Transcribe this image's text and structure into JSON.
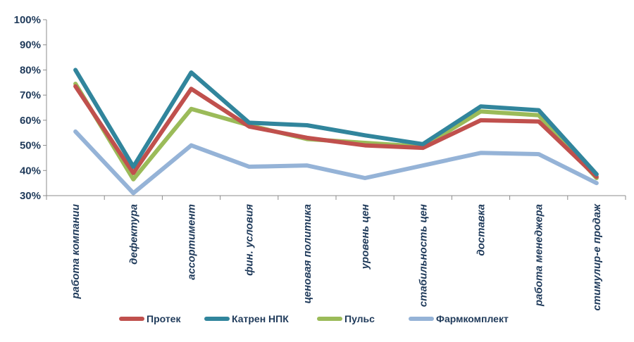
{
  "chart_data": {
    "type": "line",
    "title": "",
    "xlabel": "",
    "ylabel": "",
    "categories": [
      "работа компании",
      "дефектура",
      "ассортимент",
      "фин. условия",
      "ценовая политика",
      "уровень цен",
      "стабильность цен",
      "доставка",
      "работа менеджера",
      "стимулир-е продаж"
    ],
    "y_ticks": [
      "30%",
      "40%",
      "50%",
      "60%",
      "70%",
      "80%",
      "90%",
      "100%"
    ],
    "ylim": [
      30,
      100
    ],
    "grid": false,
    "legend_position": "bottom",
    "series": [
      {
        "name": "Протек",
        "color": "#c0504d",
        "values": [
          73.5,
          39.0,
          72.5,
          57.5,
          53.0,
          50.0,
          49.0,
          60.0,
          59.5,
          37.5
        ]
      },
      {
        "name": "Катрен НПК",
        "color": "#31859c",
        "values": [
          80.0,
          41.5,
          79.0,
          59.0,
          58.0,
          54.0,
          50.5,
          65.5,
          64.0,
          38.5
        ]
      },
      {
        "name": "Пульс",
        "color": "#9bbb59",
        "values": [
          74.5,
          36.5,
          64.5,
          58.0,
          52.5,
          51.0,
          49.5,
          63.5,
          62.0,
          37.0
        ]
      },
      {
        "name": "Фармкомплект",
        "color": "#95b3d7",
        "values": [
          55.5,
          31.0,
          50.0,
          41.5,
          42.0,
          37.0,
          42.0,
          47.0,
          46.5,
          35.0
        ]
      }
    ]
  }
}
